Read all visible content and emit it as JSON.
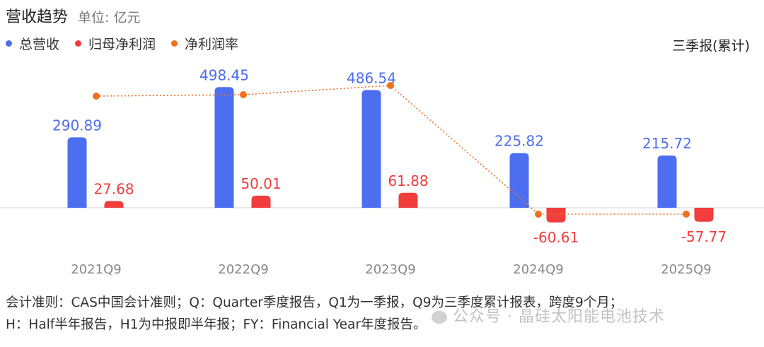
{
  "title": "营收趋势",
  "unit": "单位: 亿元",
  "report_type": "三季报(累计)",
  "footnote_line1": "会计准则：CAS中国会计准则；Q：Quarter季度报告，Q1为一季报，Q9为三季度累计报表，跨度9个月；",
  "footnote_line2": "H：Half半年报告，H1为中报即半年报；FY：Financial Year年度报告。",
  "watermark": "公众号 · 晶硅太阳能电池技术",
  "colors": {
    "revenue": "#4d6ef0",
    "net_profit": "#f23d3d",
    "margin": "#f07020",
    "axis_label": "#888888"
  },
  "chart_data": {
    "type": "bar",
    "categories": [
      "2021Q9",
      "2022Q9",
      "2023Q9",
      "2024Q9",
      "2025Q9"
    ],
    "series": [
      {
        "name": "总营收",
        "values": [
          290.89,
          498.45,
          486.54,
          225.82,
          215.72
        ]
      },
      {
        "name": "归母净利润",
        "values": [
          27.68,
          50.01,
          61.88,
          -60.61,
          -57.77
        ]
      },
      {
        "name": "净利润率",
        "values": [
          9.5,
          10.0,
          12.7,
          -26.8,
          -26.8
        ]
      }
    ],
    "labels": {
      "revenue": [
        "290.89",
        "498.45",
        "486.54",
        "225.82",
        "215.72"
      ],
      "net_profit": [
        "27.68",
        "50.01",
        "61.88",
        "-60.61",
        "-57.77"
      ]
    },
    "legend_position": "top-left",
    "grid": false
  }
}
